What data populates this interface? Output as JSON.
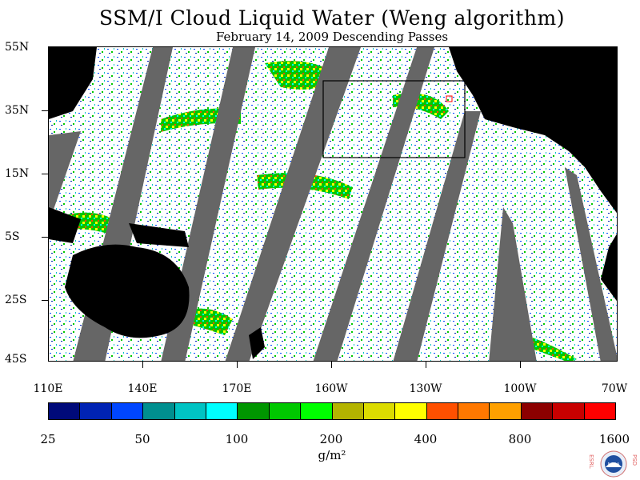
{
  "title": "SSM/I Cloud Liquid Water (Weng algorithm)",
  "subtitle": "February 14, 2009  Descending Passes",
  "latitude_labels": [
    "55N",
    "35N",
    "15N",
    "5S",
    "25S",
    "45S"
  ],
  "longitude_labels": [
    "110E",
    "140E",
    "170E",
    "160W",
    "130W",
    "100W",
    "70W"
  ],
  "colorbar": {
    "colors": [
      "#000a7a",
      "#0023b4",
      "#0046ff",
      "#008f8f",
      "#00c3c3",
      "#00ffff",
      "#009600",
      "#00c800",
      "#00ff00",
      "#b4b400",
      "#dcdc00",
      "#ffff00",
      "#ff5000",
      "#ff7800",
      "#ffa000",
      "#8c0000",
      "#c80000",
      "#ff0000"
    ],
    "labels": [
      "25",
      "50",
      "100",
      "200",
      "400",
      "800",
      "1600"
    ]
  },
  "units": "g/m²",
  "logo": {
    "left_text": "ESRL",
    "right_text": "PSD",
    "center_text": "NOAA"
  },
  "colors": {
    "land": "#000000",
    "no_data_swath_gap": "#666666",
    "ocean_background": "#ffffff",
    "highlight_box": "#000000",
    "small_marker": "#ff0000"
  }
}
